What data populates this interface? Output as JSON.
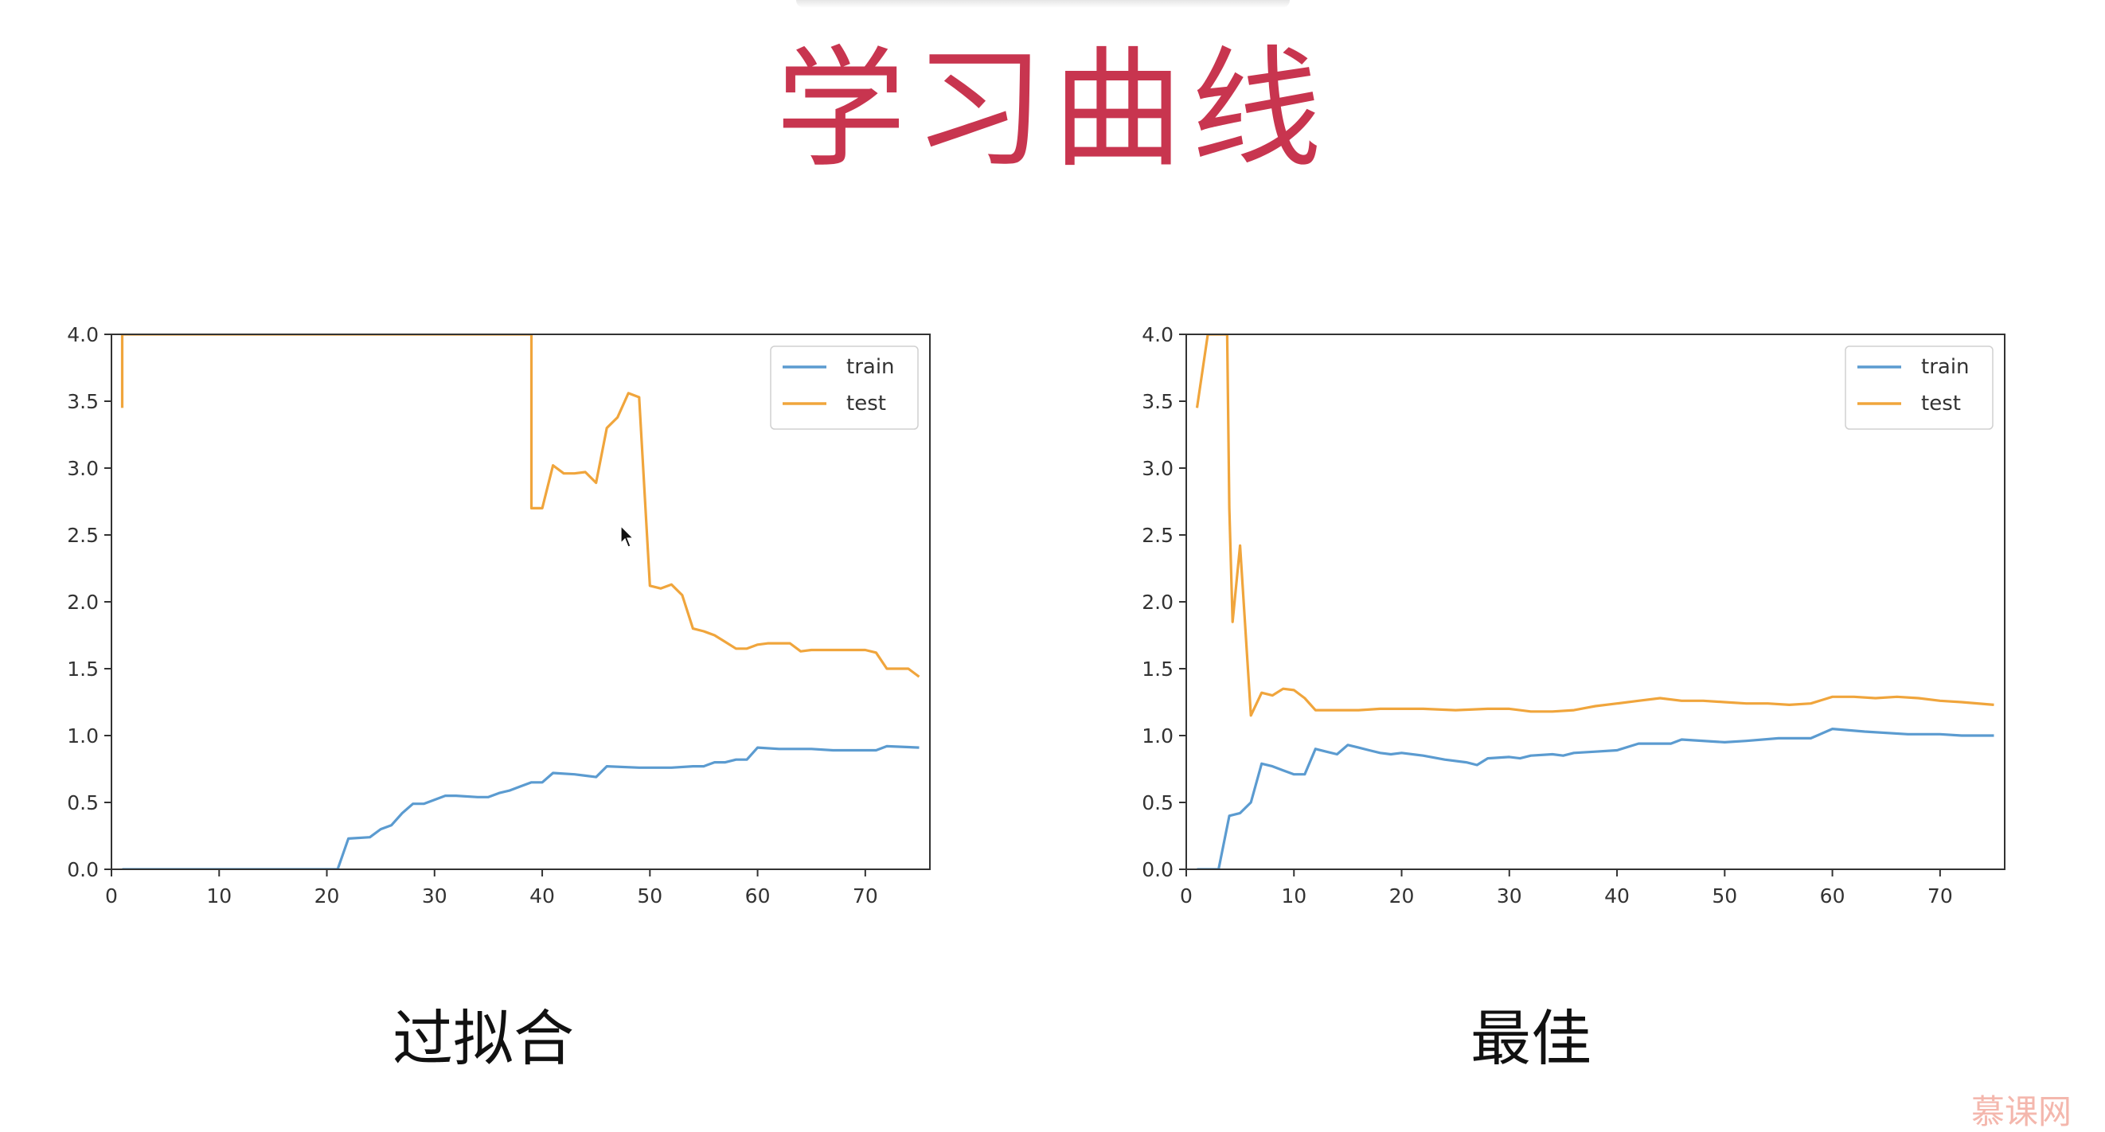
{
  "title": "学习曲线",
  "captions": [
    "过拟合",
    "最佳"
  ],
  "colors": {
    "title": "#c8354f",
    "train": "#5b9bd0",
    "test": "#f0a53c"
  },
  "watermark": "慕课网",
  "chart_data": [
    {
      "type": "line",
      "title": "",
      "xlabel": "",
      "ylabel": "",
      "xlim": [
        0,
        76
      ],
      "ylim": [
        0,
        4.0
      ],
      "xticks": [
        0,
        10,
        20,
        30,
        40,
        50,
        60,
        70
      ],
      "yticks": [
        "0.0",
        "0.5",
        "1.0",
        "1.5",
        "2.0",
        "2.5",
        "3.0",
        "3.5",
        "4.0"
      ],
      "legend": "top-right",
      "grid": false,
      "series": [
        {
          "name": "train",
          "color": "#5b9bd0",
          "x": [
            1,
            10,
            21,
            22,
            24,
            25,
            26,
            27,
            28,
            29,
            31,
            32,
            34,
            35,
            36,
            37,
            38,
            39,
            40,
            41,
            43,
            44,
            45,
            46,
            49,
            52,
            54,
            55,
            56,
            57,
            58,
            59,
            60,
            62,
            65,
            67,
            70,
            71,
            72,
            75
          ],
          "y": [
            0.0,
            0.0,
            0.0,
            0.23,
            0.24,
            0.3,
            0.33,
            0.42,
            0.49,
            0.49,
            0.55,
            0.55,
            0.54,
            0.54,
            0.57,
            0.59,
            0.62,
            0.65,
            0.65,
            0.72,
            0.71,
            0.7,
            0.69,
            0.77,
            0.76,
            0.76,
            0.77,
            0.77,
            0.8,
            0.8,
            0.82,
            0.82,
            0.91,
            0.9,
            0.9,
            0.89,
            0.89,
            0.89,
            0.92,
            0.91
          ]
        },
        {
          "name": "test",
          "color": "#f0a53c",
          "x": [
            1,
            1,
            1.2,
            39,
            39,
            40,
            41,
            42,
            43,
            44,
            45,
            46,
            47,
            48,
            49,
            50,
            51,
            52,
            53,
            54,
            55,
            56,
            57,
            58,
            59,
            60,
            61,
            62,
            63,
            64,
            65,
            66,
            67,
            68,
            69,
            70,
            71,
            72,
            73,
            74,
            75
          ],
          "y": [
            3.45,
            4.0,
            4.0,
            4.0,
            2.7,
            2.7,
            3.02,
            2.96,
            2.96,
            2.97,
            2.89,
            3.3,
            3.38,
            3.56,
            3.53,
            2.12,
            2.1,
            2.13,
            2.05,
            1.8,
            1.78,
            1.75,
            1.7,
            1.65,
            1.65,
            1.68,
            1.69,
            1.69,
            1.69,
            1.63,
            1.64,
            1.64,
            1.64,
            1.64,
            1.64,
            1.64,
            1.62,
            1.5,
            1.5,
            1.5,
            1.44
          ]
        }
      ]
    },
    {
      "type": "line",
      "title": "",
      "xlabel": "",
      "ylabel": "",
      "xlim": [
        0,
        76
      ],
      "ylim": [
        0,
        4.0
      ],
      "xticks": [
        0,
        10,
        20,
        30,
        40,
        50,
        60,
        70
      ],
      "yticks": [
        "0.0",
        "0.5",
        "1.0",
        "1.5",
        "2.0",
        "2.5",
        "3.0",
        "3.5",
        "4.0"
      ],
      "legend": "top-right",
      "grid": false,
      "series": [
        {
          "name": "train",
          "color": "#5b9bd0",
          "x": [
            1,
            3,
            4,
            5,
            6,
            7,
            8,
            9,
            10,
            11,
            12,
            13,
            14,
            15,
            16,
            17,
            18,
            19,
            20,
            22,
            24,
            26,
            27,
            28,
            30,
            31,
            32,
            34,
            35,
            36,
            38,
            40,
            42,
            45,
            46,
            50,
            52,
            55,
            58,
            60,
            63,
            67,
            70,
            72,
            75
          ],
          "y": [
            0.0,
            0.0,
            0.4,
            0.42,
            0.5,
            0.79,
            0.77,
            0.74,
            0.71,
            0.71,
            0.9,
            0.88,
            0.86,
            0.93,
            0.91,
            0.89,
            0.87,
            0.86,
            0.87,
            0.85,
            0.82,
            0.8,
            0.78,
            0.83,
            0.84,
            0.83,
            0.85,
            0.86,
            0.85,
            0.87,
            0.88,
            0.89,
            0.94,
            0.94,
            0.97,
            0.95,
            0.96,
            0.98,
            0.98,
            1.05,
            1.03,
            1.01,
            1.01,
            1.0,
            1.0
          ]
        },
        {
          "name": "test",
          "color": "#f0a53c",
          "x": [
            1,
            2,
            2.2,
            3.8,
            4,
            4.3,
            5,
            6,
            7,
            8,
            9,
            10,
            11,
            12,
            14,
            16,
            18,
            20,
            22,
            25,
            28,
            30,
            32,
            34,
            36,
            38,
            40,
            42,
            44,
            46,
            48,
            50,
            52,
            54,
            56,
            58,
            60,
            62,
            64,
            66,
            68,
            70,
            72,
            75
          ],
          "y": [
            3.45,
            4.0,
            4.0,
            4.0,
            2.7,
            1.85,
            2.42,
            1.15,
            1.32,
            1.3,
            1.35,
            1.34,
            1.28,
            1.19,
            1.19,
            1.19,
            1.2,
            1.2,
            1.2,
            1.19,
            1.2,
            1.2,
            1.18,
            1.18,
            1.19,
            1.22,
            1.24,
            1.26,
            1.28,
            1.26,
            1.26,
            1.25,
            1.24,
            1.24,
            1.23,
            1.24,
            1.29,
            1.29,
            1.28,
            1.29,
            1.28,
            1.26,
            1.25,
            1.23
          ]
        }
      ]
    }
  ]
}
